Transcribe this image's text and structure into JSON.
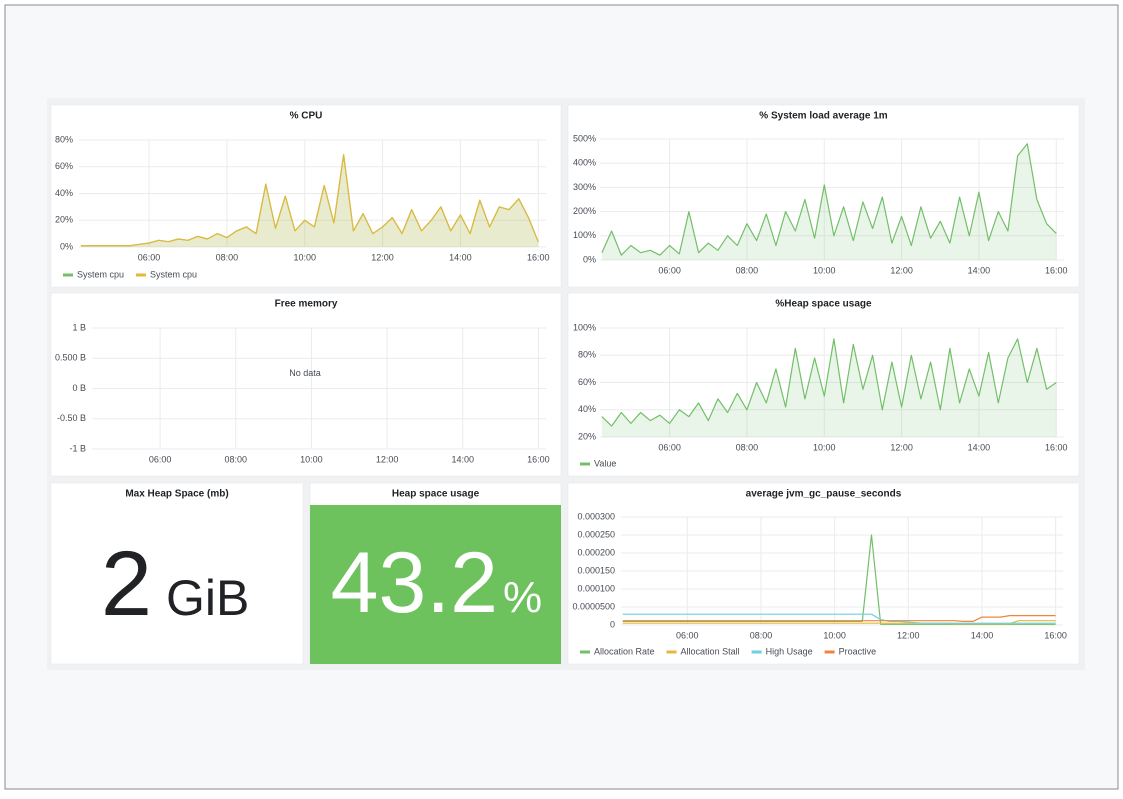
{
  "panels": [
    {
      "type": "line",
      "title": "% CPU",
      "x": [
        4.25,
        4.5,
        4.75,
        5,
        5.25,
        5.5,
        5.75,
        6,
        6.25,
        6.5,
        6.75,
        7,
        7.25,
        7.5,
        7.75,
        8,
        8.25,
        8.5,
        8.75,
        9,
        9.25,
        9.5,
        9.75,
        10,
        10.25,
        10.5,
        10.75,
        11,
        11.25,
        11.5,
        11.75,
        12,
        12.25,
        12.5,
        12.75,
        13,
        13.25,
        13.5,
        13.75,
        14,
        14.25,
        14.5,
        14.75,
        15,
        15.25,
        15.5,
        15.75,
        16
      ],
      "xlim": [
        4.2,
        16.2
      ],
      "xticks": [
        {
          "value": 6,
          "label": "06:00"
        },
        {
          "value": 8,
          "label": "08:00"
        },
        {
          "value": 10,
          "label": "10:00"
        },
        {
          "value": 12,
          "label": "12:00"
        },
        {
          "value": 14,
          "label": "14:00"
        },
        {
          "value": 16,
          "label": "16:00"
        }
      ],
      "ylim": [
        0,
        80
      ],
      "yticks": [
        {
          "value": 0,
          "label": "0%"
        },
        {
          "value": 20,
          "label": "20%"
        },
        {
          "value": 40,
          "label": "40%"
        },
        {
          "value": 60,
          "label": "60%"
        },
        {
          "value": 80,
          "label": "80%"
        }
      ],
      "legend": "bottom",
      "fill": true,
      "series": [
        {
          "name": "System cpu",
          "color": "#73bf69",
          "values": [
            1,
            1,
            1,
            1,
            1,
            1,
            2,
            3,
            5,
            4,
            6,
            5,
            8,
            6,
            10,
            7,
            12,
            15,
            10,
            47,
            14,
            38,
            12,
            20,
            15,
            46,
            18,
            69,
            12,
            25,
            10,
            15,
            22,
            10,
            28,
            12,
            20,
            30,
            12,
            24,
            10,
            35,
            15,
            30,
            28,
            36,
            22,
            4
          ]
        },
        {
          "name": "System cpu",
          "color": "#e5b83a",
          "values": [
            1,
            1,
            1,
            1,
            1,
            1,
            2,
            3,
            5,
            4,
            6,
            5,
            8,
            6,
            10,
            7,
            12,
            15,
            10,
            47,
            14,
            38,
            12,
            20,
            15,
            46,
            18,
            69,
            12,
            25,
            10,
            15,
            22,
            10,
            28,
            12,
            20,
            30,
            12,
            24,
            10,
            35,
            15,
            30,
            28,
            36,
            22,
            4
          ]
        }
      ]
    },
    {
      "type": "line",
      "title": "% System load average 1m",
      "x": [
        4.25,
        4.5,
        4.75,
        5,
        5.25,
        5.5,
        5.75,
        6,
        6.25,
        6.5,
        6.75,
        7,
        7.25,
        7.5,
        7.75,
        8,
        8.25,
        8.5,
        8.75,
        9,
        9.25,
        9.5,
        9.75,
        10,
        10.25,
        10.5,
        10.75,
        11,
        11.25,
        11.5,
        11.75,
        12,
        12.25,
        12.5,
        12.75,
        13,
        13.25,
        13.5,
        13.75,
        14,
        14.25,
        14.5,
        14.75,
        15,
        15.25,
        15.5,
        15.75,
        16
      ],
      "xlim": [
        4.2,
        16.2
      ],
      "xticks": [
        {
          "value": 6,
          "label": "06:00"
        },
        {
          "value": 8,
          "label": "08:00"
        },
        {
          "value": 10,
          "label": "10:00"
        },
        {
          "value": 12,
          "label": "12:00"
        },
        {
          "value": 14,
          "label": "14:00"
        },
        {
          "value": 16,
          "label": "16:00"
        }
      ],
      "ylim": [
        0,
        500
      ],
      "yticks": [
        {
          "value": 0,
          "label": "0%"
        },
        {
          "value": 100,
          "label": "100%"
        },
        {
          "value": 200,
          "label": "200%"
        },
        {
          "value": 300,
          "label": "300%"
        },
        {
          "value": 400,
          "label": "400%"
        },
        {
          "value": 500,
          "label": "500%"
        }
      ],
      "fill": true,
      "series": [
        {
          "color": "#73bf69",
          "values": [
            30,
            120,
            20,
            60,
            30,
            40,
            20,
            60,
            25,
            200,
            30,
            70,
            40,
            100,
            60,
            150,
            80,
            190,
            60,
            200,
            120,
            250,
            90,
            310,
            100,
            220,
            80,
            240,
            130,
            260,
            70,
            180,
            60,
            220,
            90,
            160,
            70,
            260,
            100,
            280,
            80,
            200,
            120,
            430,
            480,
            250,
            150,
            110
          ]
        }
      ]
    },
    {
      "type": "line",
      "title": "Free memory",
      "no_data": "No data",
      "xlim": [
        4.2,
        16.2
      ],
      "xticks": [
        {
          "value": 6,
          "label": "06:00"
        },
        {
          "value": 8,
          "label": "08:00"
        },
        {
          "value": 10,
          "label": "10:00"
        },
        {
          "value": 12,
          "label": "12:00"
        },
        {
          "value": 14,
          "label": "14:00"
        },
        {
          "value": 16,
          "label": "16:00"
        }
      ],
      "ylim": [
        -1,
        1
      ],
      "yticks": [
        {
          "value": -1,
          "label": "-1 B"
        },
        {
          "value": -0.5,
          "label": "-0.50 B"
        },
        {
          "value": 0,
          "label": "0 B"
        },
        {
          "value": 0.5,
          "label": "0.500 B"
        },
        {
          "value": 1,
          "label": "1 B"
        }
      ],
      "series": []
    },
    {
      "type": "line",
      "title": "%Heap space usage",
      "x": [
        4.25,
        4.5,
        4.75,
        5,
        5.25,
        5.5,
        5.75,
        6,
        6.25,
        6.5,
        6.75,
        7,
        7.25,
        7.5,
        7.75,
        8,
        8.25,
        8.5,
        8.75,
        9,
        9.25,
        9.5,
        9.75,
        10,
        10.25,
        10.5,
        10.75,
        11,
        11.25,
        11.5,
        11.75,
        12,
        12.25,
        12.5,
        12.75,
        13,
        13.25,
        13.5,
        13.75,
        14,
        14.25,
        14.5,
        14.75,
        15,
        15.25,
        15.5,
        15.75,
        16
      ],
      "xlim": [
        4.2,
        16.2
      ],
      "xticks": [
        {
          "value": 6,
          "label": "06:00"
        },
        {
          "value": 8,
          "label": "08:00"
        },
        {
          "value": 10,
          "label": "10:00"
        },
        {
          "value": 12,
          "label": "12:00"
        },
        {
          "value": 14,
          "label": "14:00"
        },
        {
          "value": 16,
          "label": "16:00"
        }
      ],
      "ylim": [
        20,
        100
      ],
      "yticks": [
        {
          "value": 20,
          "label": "20%"
        },
        {
          "value": 40,
          "label": "40%"
        },
        {
          "value": 60,
          "label": "60%"
        },
        {
          "value": 80,
          "label": "80%"
        },
        {
          "value": 100,
          "label": "100%"
        }
      ],
      "legend": "bottom",
      "fill": true,
      "series": [
        {
          "name": "Value",
          "color": "#73bf69",
          "values": [
            35,
            28,
            38,
            30,
            38,
            32,
            36,
            30,
            40,
            35,
            45,
            32,
            48,
            38,
            52,
            40,
            60,
            45,
            70,
            42,
            85,
            48,
            78,
            50,
            92,
            45,
            88,
            55,
            80,
            40,
            75,
            42,
            80,
            48,
            75,
            40,
            85,
            45,
            70,
            50,
            82,
            45,
            78,
            92,
            60,
            85,
            55,
            60
          ]
        }
      ]
    },
    {
      "type": "stat",
      "title": "Max Heap Space (mb)",
      "value": 2,
      "unit": "GiB",
      "color": "#202226"
    },
    {
      "type": "stat",
      "title": "Heap space usage",
      "value": 43.2,
      "unit": "%",
      "color": "#ffffff",
      "background": "#6ec25e"
    },
    {
      "type": "line",
      "title": "average jvm_gc_pause_seconds",
      "x": [
        4.25,
        4.5,
        4.75,
        5,
        5.25,
        5.5,
        5.75,
        6,
        6.25,
        6.5,
        6.75,
        7,
        7.25,
        7.5,
        7.75,
        8,
        8.25,
        8.5,
        8.75,
        9,
        9.25,
        9.5,
        9.75,
        10,
        10.25,
        10.5,
        10.75,
        11,
        11.25,
        11.5,
        11.75,
        12,
        12.25,
        12.5,
        12.75,
        13,
        13.25,
        13.5,
        13.75,
        14,
        14.25,
        14.5,
        14.75,
        15,
        15.25,
        15.5,
        15.75,
        16
      ],
      "xlim": [
        4.2,
        16.2
      ],
      "xticks": [
        {
          "value": 6,
          "label": "06:00"
        },
        {
          "value": 8,
          "label": "08:00"
        },
        {
          "value": 10,
          "label": "10:00"
        },
        {
          "value": 12,
          "label": "12:00"
        },
        {
          "value": 14,
          "label": "14:00"
        },
        {
          "value": 16,
          "label": "16:00"
        }
      ],
      "ylim": [
        0,
        0.0003
      ],
      "yticks": [
        0,
        {
          "value": 5e-05,
          "label": "0.0000500"
        },
        {
          "value": 0.0001,
          "label": "0.000100"
        },
        {
          "value": 0.00015,
          "label": "0.000150"
        },
        {
          "value": 0.0002,
          "label": "0.000200"
        },
        {
          "value": 0.00025,
          "label": "0.000250"
        },
        {
          "value": 0.0003,
          "label": "0.000300"
        }
      ],
      "legend": "bottom",
      "series": [
        {
          "name": "Allocation Rate",
          "color": "#73bf69",
          "values": [
            1e-05,
            1e-05,
            1e-05,
            1e-05,
            1e-05,
            1e-05,
            1e-05,
            1e-05,
            1e-05,
            1e-05,
            1e-05,
            1e-05,
            1e-05,
            1e-05,
            1e-05,
            1e-05,
            1e-05,
            1e-05,
            1e-05,
            1e-05,
            1e-05,
            1e-05,
            1e-05,
            1e-05,
            1e-05,
            1e-05,
            1e-05,
            0.00025,
            2e-06,
            2e-06,
            2e-06,
            2e-06,
            2e-06,
            2e-06,
            2e-06,
            2e-06,
            2e-06,
            2e-06,
            2e-06,
            2e-06,
            2e-06,
            2e-06,
            2e-06,
            2e-06,
            2e-06,
            2e-06,
            2e-06,
            2e-06
          ]
        },
        {
          "name": "Allocation Stall",
          "color": "#e5b83a",
          "values": [
            5e-06,
            5e-06,
            5e-06,
            5e-06,
            5e-06,
            5e-06,
            5e-06,
            5e-06,
            5e-06,
            5e-06,
            5e-06,
            5e-06,
            5e-06,
            5e-06,
            5e-06,
            5e-06,
            5e-06,
            5e-06,
            5e-06,
            5e-06,
            5e-06,
            5e-06,
            5e-06,
            5e-06,
            5e-06,
            5e-06,
            5e-06,
            5e-06,
            5e-06,
            5e-06,
            5e-06,
            5e-06,
            5e-06,
            5e-06,
            5e-06,
            5e-06,
            4e-06,
            4e-06,
            4e-06,
            4e-06,
            4e-06,
            4e-06,
            4e-06,
            1.2e-05,
            1.2e-05,
            1.2e-05,
            1.2e-05,
            1.2e-05
          ]
        },
        {
          "name": "High Usage",
          "color": "#6ed0e0",
          "values": [
            3e-05,
            3e-05,
            3e-05,
            3e-05,
            3e-05,
            3e-05,
            3e-05,
            3e-05,
            3e-05,
            3e-05,
            3e-05,
            3e-05,
            3e-05,
            3e-05,
            3e-05,
            3e-05,
            3e-05,
            3e-05,
            3e-05,
            3e-05,
            3e-05,
            3e-05,
            3e-05,
            3e-05,
            3e-05,
            3e-05,
            3e-05,
            3e-05,
            1.5e-05,
            1e-05,
            1e-05,
            8e-06,
            6e-06,
            5e-06,
            5e-06,
            5e-06,
            5e-06,
            5e-06,
            5e-06,
            5e-06,
            5e-06,
            5e-06,
            5e-06,
            5e-06,
            5e-06,
            5e-06,
            5e-06,
            5e-06
          ]
        },
        {
          "name": "Proactive",
          "color": "#ef843c",
          "values": [
            1.2e-05,
            1.2e-05,
            1.2e-05,
            1.2e-05,
            1.2e-05,
            1.2e-05,
            1.2e-05,
            1.2e-05,
            1.2e-05,
            1.2e-05,
            1.2e-05,
            1.2e-05,
            1.2e-05,
            1.2e-05,
            1.2e-05,
            1.2e-05,
            1.2e-05,
            1.2e-05,
            1.2e-05,
            1.2e-05,
            1.2e-05,
            1.2e-05,
            1.2e-05,
            1.2e-05,
            1.2e-05,
            1.2e-05,
            1.2e-05,
            1.2e-05,
            1.2e-05,
            1.2e-05,
            1.2e-05,
            1.2e-05,
            1.2e-05,
            1.2e-05,
            1.2e-05,
            1.2e-05,
            1.2e-05,
            1e-05,
            1e-05,
            2.2e-05,
            2.2e-05,
            2.2e-05,
            2.6e-05,
            2.6e-05,
            2.6e-05,
            2.6e-05,
            2.6e-05,
            2.6e-05
          ]
        }
      ]
    }
  ]
}
